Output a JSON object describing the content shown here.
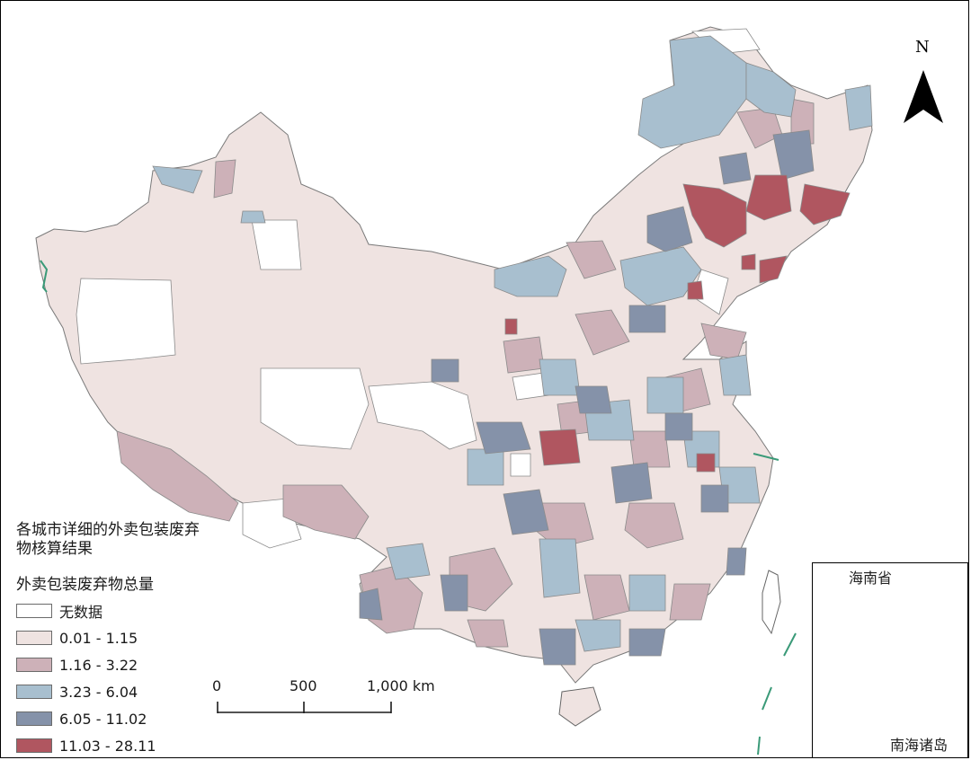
{
  "legend": {
    "title": "各城市详细的外卖包装废弃物核算结果",
    "subtitle": "外卖包装废弃物总量",
    "classes": [
      {
        "label": "无数据",
        "color": "#ffffff"
      },
      {
        "label": "0.01 - 1.15",
        "color": "#efe3e1"
      },
      {
        "label": "1.16 - 3.22",
        "color": "#cdb1b8"
      },
      {
        "label": "3.23 - 6.04",
        "color": "#a8bfcf"
      },
      {
        "label": "6.05 - 11.02",
        "color": "#8592a9"
      },
      {
        "label": "11.03 - 28.11",
        "color": "#b05660"
      }
    ]
  },
  "scale_bar": {
    "tick_0": "0",
    "tick_1": "500",
    "tick_2": "1,000 km"
  },
  "north_arrow": {
    "label": "N",
    "icon": "north-arrow-icon"
  },
  "inset": {
    "top_label": "海南省",
    "bottom_label": "南海诸岛"
  },
  "colors": {
    "boundary": "#8a8a8a",
    "dashed_line": "#3a9a78"
  }
}
